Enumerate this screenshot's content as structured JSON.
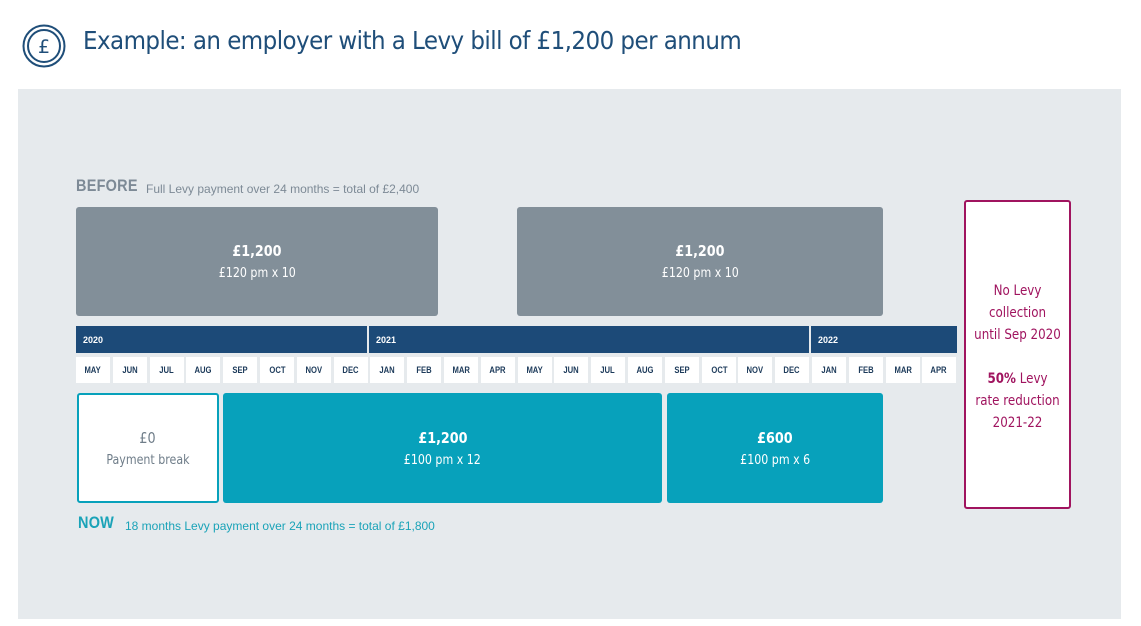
{
  "header": {
    "title": "Example: an employer with a Levy bill of £1,200 per annum",
    "icon": "pound-coin-icon"
  },
  "before": {
    "label": "BEFORE",
    "note": "Full Levy payment over 24 months = total of £2,400",
    "blocks": [
      {
        "amount": "£1,200",
        "detail": "£120 pm x 10"
      },
      {
        "amount": "£1,200",
        "detail": "£120 pm x 10"
      }
    ]
  },
  "timeline": {
    "years": [
      "2020",
      "2021",
      "2022"
    ],
    "months": [
      "MAY",
      "JUN",
      "JUL",
      "AUG",
      "SEP",
      "OCT",
      "NOV",
      "DEC",
      "JAN",
      "FEB",
      "MAR",
      "APR",
      "MAY",
      "JUN",
      "JUL",
      "AUG",
      "SEP",
      "OCT",
      "NOV",
      "DEC",
      "JAN",
      "FEB",
      "MAR",
      "APR"
    ]
  },
  "now": {
    "label": "NOW",
    "note": "18 months Levy payment over 24 months = total of £1,800",
    "blocks": [
      {
        "amount": "£0",
        "detail": "Payment break"
      },
      {
        "amount": "£1,200",
        "detail": "£100 pm x 12"
      },
      {
        "amount": "£600",
        "detail": "£100 pm x 6"
      }
    ]
  },
  "callout": {
    "line1": "No Levy",
    "line2": "collection",
    "line3": "until Sep 2020",
    "pct": "50%",
    "line4": " Levy",
    "line5": "rate reduction",
    "line6": "2021-22"
  },
  "colors": {
    "navy": "#1c4a78",
    "grey_block": "#828f99",
    "teal_block": "#07a1bb",
    "magenta": "#a0145f",
    "panel": "#e6eaed"
  }
}
